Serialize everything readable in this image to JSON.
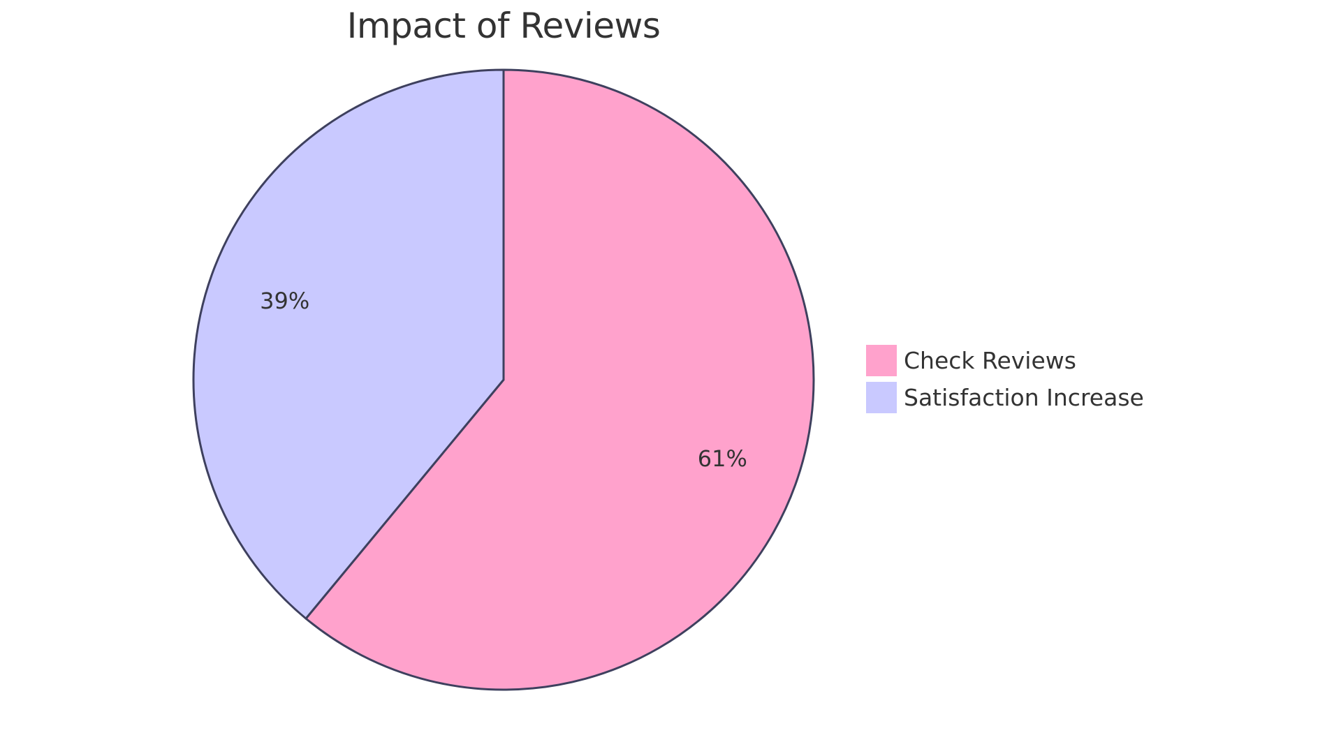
{
  "chart_data": {
    "type": "pie",
    "title": "Impact of Reviews",
    "categories": [
      "Check Reviews",
      "Satisfaction Increase"
    ],
    "values": [
      61,
      39
    ],
    "labels": [
      "61%",
      "39%"
    ],
    "colors": [
      "#ffa2cc",
      "#c9c9ff"
    ],
    "stroke_color": "#3e405e",
    "legend_position": "right",
    "start_angle": "top, clockwise"
  },
  "title": "Impact of Reviews",
  "legend": {
    "items": [
      {
        "label": "Check Reviews",
        "color": "#ffa2cc"
      },
      {
        "label": "Satisfaction Increase",
        "color": "#c9c9ff"
      }
    ]
  },
  "slices": [
    {
      "label": "61%",
      "name": "Check Reviews"
    },
    {
      "label": "39%",
      "name": "Satisfaction Increase"
    }
  ]
}
